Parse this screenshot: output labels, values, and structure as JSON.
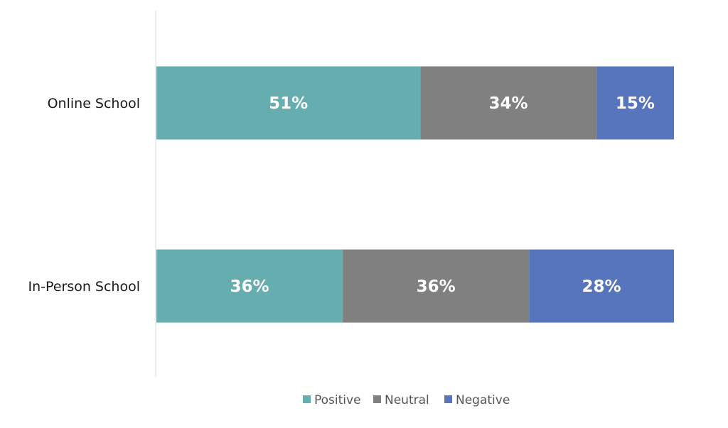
{
  "chart_data": {
    "type": "bar",
    "orientation": "horizontal",
    "stacked": true,
    "percent_stacked": true,
    "categories": [
      "Online School",
      "In-Person School"
    ],
    "series": [
      {
        "name": "Positive",
        "values": [
          51,
          36
        ],
        "labels": [
          "51%",
          "36%"
        ],
        "color": "#66ADB0"
      },
      {
        "name": "Neutral",
        "values": [
          34,
          36
        ],
        "labels": [
          "34%",
          "36%"
        ],
        "color": "#808080"
      },
      {
        "name": "Negative",
        "values": [
          15,
          28
        ],
        "labels": [
          "15%",
          "28%"
        ],
        "color": "#5775BD"
      }
    ],
    "xlim": [
      0,
      100
    ],
    "grid": false,
    "legend": "bottom"
  }
}
